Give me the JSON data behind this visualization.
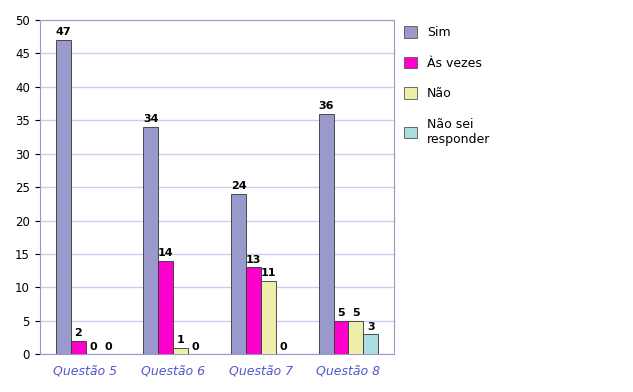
{
  "categories": [
    "Questão 5",
    "Questão 6",
    "Questão 7",
    "Questão 8"
  ],
  "series": {
    "Sim": [
      47,
      34,
      24,
      36
    ],
    "Às vezes": [
      2,
      14,
      13,
      5
    ],
    "Não": [
      0,
      1,
      11,
      5
    ],
    "Não sei\nresponder": [
      0,
      0,
      0,
      3
    ]
  },
  "colors": {
    "Sim": "#9999cc",
    "Às vezes": "#ff00cc",
    "Não": "#eeeeaa",
    "Não sei\nresponder": "#aadddd"
  },
  "legend_labels": [
    "Sim",
    "Às vezes",
    "Não",
    "Não sei\nresponder"
  ],
  "ylim": [
    0,
    50
  ],
  "yticks": [
    0,
    5,
    10,
    15,
    20,
    25,
    30,
    35,
    40,
    45,
    50
  ],
  "xlabel_color": "#5555cc",
  "bar_width": 0.17,
  "background_color": "#ffffff",
  "plot_bg_color": "#eeeeff",
  "grid_color": "#ccccee",
  "border_color": "#9999cc",
  "title": ""
}
